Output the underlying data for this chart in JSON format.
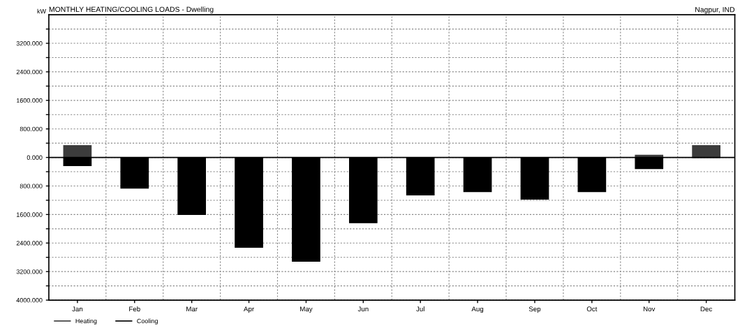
{
  "chart_data": {
    "type": "bar",
    "title": "MONTHLY HEATING/COOLING LOADS - Dwelling",
    "ylabel": "kW",
    "annotations": [
      "Nagpur, IND"
    ],
    "categories": [
      "Jan",
      "Feb",
      "Mar",
      "Apr",
      "May",
      "Jun",
      "Jul",
      "Aug",
      "Sep",
      "Oct",
      "Nov",
      "Dec"
    ],
    "series": [
      {
        "name": "Heating",
        "color": "#3c3c3c",
        "values": [
          330,
          0,
          0,
          0,
          0,
          0,
          0,
          0,
          0,
          0,
          60,
          330
        ]
      },
      {
        "name": "Cooling",
        "color": "#000000",
        "values": [
          -230,
          -860,
          -1600,
          -2520,
          -2910,
          -1830,
          -1050,
          -960,
          -1170,
          -960,
          -310,
          0
        ]
      }
    ],
    "ylim": [
      -4000,
      4000
    ],
    "yticks": [
      {
        "value": -4000,
        "label": "4000.000"
      },
      {
        "value": -3600,
        "label": null
      },
      {
        "value": -3200,
        "label": "3200.000"
      },
      {
        "value": -2800,
        "label": null
      },
      {
        "value": -2400,
        "label": "2400.000"
      },
      {
        "value": -2000,
        "label": null
      },
      {
        "value": -1600,
        "label": "1600.000"
      },
      {
        "value": -1200,
        "label": null
      },
      {
        "value": -800,
        "label": "800.000"
      },
      {
        "value": -400,
        "label": null
      },
      {
        "value": 0,
        "label": "0.000"
      },
      {
        "value": 400,
        "label": null
      },
      {
        "value": 800,
        "label": "800.000"
      },
      {
        "value": 1200,
        "label": null
      },
      {
        "value": 1600,
        "label": "1600.000"
      },
      {
        "value": 2000,
        "label": null
      },
      {
        "value": 2400,
        "label": "2400.000"
      },
      {
        "value": 2800,
        "label": null
      },
      {
        "value": 3200,
        "label": "3200.000"
      },
      {
        "value": 3600,
        "label": null
      }
    ],
    "grid": true,
    "legend": "bottom left"
  }
}
